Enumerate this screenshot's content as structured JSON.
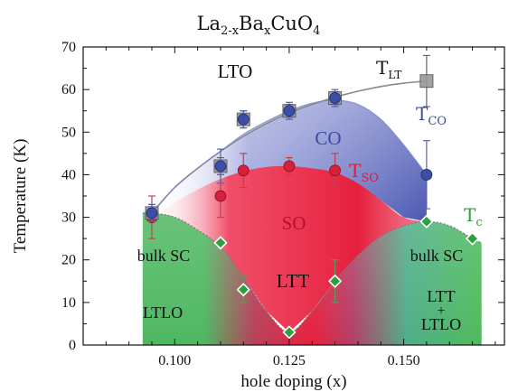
{
  "chart_data": {
    "type": "scatter",
    "title_parts": {
      "base1": "La",
      "sub1": "2-x",
      "base2": "Ba",
      "sub2": "x",
      "base3": "CuO",
      "sub3": "4"
    },
    "xlabel": "hole doping (x)",
    "ylabel": "Temperature  (K)",
    "xlim": [
      0.08,
      0.172
    ],
    "ylim": [
      0,
      70
    ],
    "xticks": [
      "0.100",
      "0.125",
      "0.150"
    ],
    "xtick_values": [
      0.1,
      0.125,
      0.15
    ],
    "yticks": [
      "0",
      "10",
      "20",
      "30",
      "40",
      "50",
      "60",
      "70"
    ],
    "ytick_values": [
      0,
      10,
      20,
      30,
      40,
      50,
      60,
      70
    ],
    "grid": false,
    "colors": {
      "T_LT": "#999999",
      "T_CO": "#3b4fa8",
      "T_SO": "#d81f3b",
      "T_c": "#2e9e3e",
      "CO_region": "#4f5cb8",
      "SO_region": "#e8253f",
      "SC_region": "#49b35a"
    },
    "series": [
      {
        "key": "T_LT",
        "marker": "square",
        "points": [
          {
            "x": 0.095,
            "y": 31,
            "err": 2
          },
          {
            "x": 0.11,
            "y": 42,
            "err": 2
          },
          {
            "x": 0.115,
            "y": 53,
            "err": 2
          },
          {
            "x": 0.125,
            "y": 55,
            "err": 1.5
          },
          {
            "x": 0.135,
            "y": 58,
            "err": 1.5
          },
          {
            "x": 0.155,
            "y": 62,
            "err": 6
          }
        ]
      },
      {
        "key": "T_CO",
        "marker": "circle",
        "points": [
          {
            "x": 0.095,
            "y": 31,
            "err": 2
          },
          {
            "x": 0.11,
            "y": 42,
            "err": 4
          },
          {
            "x": 0.115,
            "y": 53,
            "err": 2
          },
          {
            "x": 0.125,
            "y": 55,
            "err": 2
          },
          {
            "x": 0.135,
            "y": 58,
            "err": 2
          },
          {
            "x": 0.155,
            "y": 40,
            "err": 8
          }
        ]
      },
      {
        "key": "T_SO",
        "marker": "circle",
        "points": [
          {
            "x": 0.095,
            "y": 30,
            "err": 5
          },
          {
            "x": 0.11,
            "y": 35,
            "err": 5
          },
          {
            "x": 0.115,
            "y": 41,
            "err": 4
          },
          {
            "x": 0.125,
            "y": 42,
            "err": 2
          },
          {
            "x": 0.135,
            "y": 41,
            "err": 4
          }
        ]
      },
      {
        "key": "T_c",
        "marker": "diamond",
        "points": [
          {
            "x": 0.095,
            "y": 31,
            "err": 0
          },
          {
            "x": 0.11,
            "y": 24,
            "err": 0
          },
          {
            "x": 0.115,
            "y": 13,
            "err": 3
          },
          {
            "x": 0.125,
            "y": 3,
            "err": 0
          },
          {
            "x": 0.135,
            "y": 15,
            "err": 5
          },
          {
            "x": 0.155,
            "y": 29,
            "err": 0
          },
          {
            "x": 0.165,
            "y": 25,
            "err": 0
          }
        ]
      }
    ],
    "curves": {
      "T_LT": [
        [
          0.095,
          31
        ],
        [
          0.1,
          37
        ],
        [
          0.105,
          41.5
        ],
        [
          0.11,
          45.5
        ],
        [
          0.115,
          49
        ],
        [
          0.12,
          52
        ],
        [
          0.125,
          54.5
        ],
        [
          0.13,
          56.5
        ],
        [
          0.135,
          58.2
        ],
        [
          0.14,
          59.6
        ],
        [
          0.145,
          60.7
        ],
        [
          0.15,
          61.5
        ],
        [
          0.155,
          62
        ]
      ],
      "T_CO": [
        [
          0.095,
          31
        ],
        [
          0.1,
          37
        ],
        [
          0.105,
          41.5
        ],
        [
          0.11,
          45.5
        ],
        [
          0.115,
          49.5
        ],
        [
          0.12,
          52.5
        ],
        [
          0.125,
          55
        ],
        [
          0.13,
          56.8
        ],
        [
          0.135,
          57.5
        ],
        [
          0.14,
          56.5
        ],
        [
          0.145,
          53
        ],
        [
          0.15,
          47
        ],
        [
          0.155,
          40
        ]
      ],
      "T_SO": [
        [
          0.095,
          30
        ],
        [
          0.1,
          33.5
        ],
        [
          0.105,
          36.5
        ],
        [
          0.11,
          39
        ],
        [
          0.115,
          40.8
        ],
        [
          0.12,
          41.8
        ],
        [
          0.125,
          42
        ],
        [
          0.13,
          41.5
        ],
        [
          0.135,
          40.5
        ],
        [
          0.14,
          38
        ],
        [
          0.145,
          34
        ],
        [
          0.15,
          30
        ],
        [
          0.155,
          29
        ]
      ],
      "T_c": [
        [
          0.093,
          31
        ],
        [
          0.095,
          31
        ],
        [
          0.1,
          30
        ],
        [
          0.105,
          27
        ],
        [
          0.11,
          23
        ],
        [
          0.115,
          16
        ],
        [
          0.12,
          8
        ],
        [
          0.125,
          3
        ],
        [
          0.13,
          8
        ],
        [
          0.135,
          15
        ],
        [
          0.14,
          21
        ],
        [
          0.145,
          25.5
        ],
        [
          0.15,
          28
        ],
        [
          0.155,
          29
        ],
        [
          0.16,
          28
        ],
        [
          0.165,
          25
        ],
        [
          0.167,
          24
        ]
      ]
    },
    "series_labels": {
      "T_LT": {
        "base": "T",
        "sub": "LT"
      },
      "T_CO": {
        "base": "T",
        "sub": "CO"
      },
      "T_SO": {
        "base": "T",
        "sub": "SO"
      },
      "T_c": {
        "base": "T",
        "sub": "c"
      }
    },
    "region_labels": {
      "LTO": "LTO",
      "CO": "CO",
      "SO": "SO",
      "LTT": "LTT",
      "bulk_sc_left": "bulk SC",
      "bulk_sc_right": "bulk SC",
      "LTLO": "LTLO",
      "LTT_plus_1": "LTT",
      "plus": "+",
      "LTT_plus_2": "LTLO"
    }
  }
}
